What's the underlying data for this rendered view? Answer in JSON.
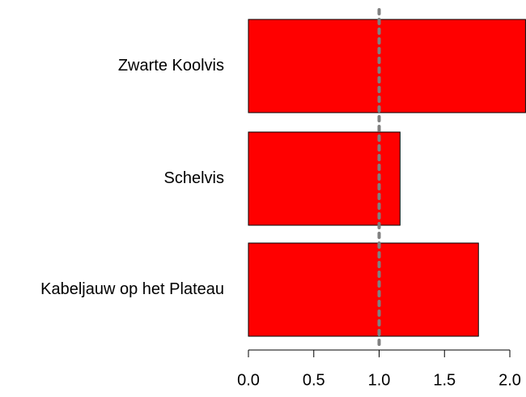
{
  "chart_data": {
    "type": "barh",
    "categories": [
      "Zwarte Koolvis",
      "Schelvis",
      "Kabeljauw op het Plateau"
    ],
    "values": [
      2.12,
      1.16,
      1.76
    ],
    "color": "#ff0000",
    "xlim": [
      0,
      2.12
    ],
    "xticks": [
      {
        "value": 0,
        "label": "0.0"
      },
      {
        "value": 0.5,
        "label": "0.5"
      },
      {
        "value": 1,
        "label": "1.0"
      },
      {
        "value": 1.5,
        "label": "1.5"
      },
      {
        "value": 2,
        "label": "2.0"
      }
    ],
    "reference_line": {
      "value": 1,
      "color": "#808080"
    }
  }
}
